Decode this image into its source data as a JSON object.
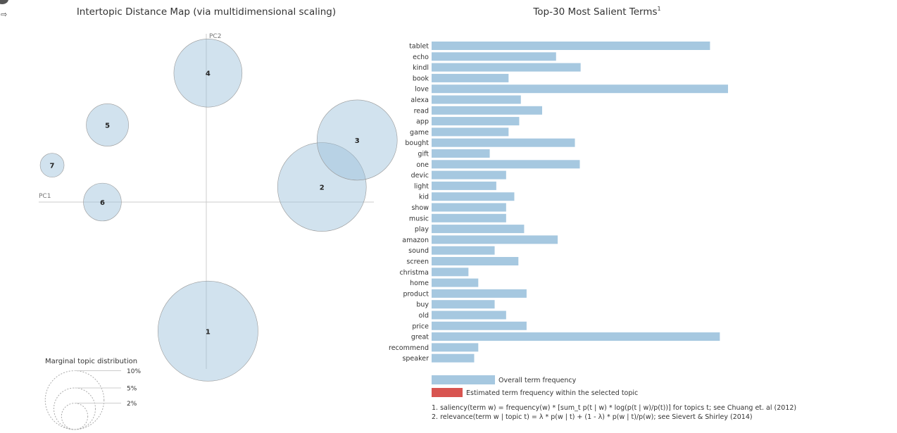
{
  "chart_data": [
    {
      "type": "scatter",
      "title": "Intertopic Distance Map (via multidimensional scaling)",
      "xlabel": "PC1",
      "ylabel": "PC2",
      "xlim": [
        -1,
        1
      ],
      "ylim": [
        -1,
        1
      ],
      "grid": false,
      "points": [
        {
          "label": "1",
          "x": 0.01,
          "y": -0.77,
          "size": 14
        },
        {
          "label": "2",
          "x": 0.69,
          "y": 0.09,
          "size": 11
        },
        {
          "label": "3",
          "x": 0.9,
          "y": 0.37,
          "size": 9
        },
        {
          "label": "4",
          "x": 0.01,
          "y": 0.77,
          "size": 6.5
        },
        {
          "label": "5",
          "x": -0.59,
          "y": 0.46,
          "size": 2.5
        },
        {
          "label": "6",
          "x": -0.62,
          "y": 0.0,
          "size": 2.0
        },
        {
          "label": "7",
          "x": -0.92,
          "y": 0.22,
          "size": 0.8
        }
      ],
      "marginal": {
        "title": "Marginal topic distribution",
        "levels": [
          {
            "label": "2%",
            "value": 2
          },
          {
            "label": "5%",
            "value": 5
          },
          {
            "label": "10%",
            "value": 10
          }
        ]
      }
    },
    {
      "type": "bar",
      "orientation": "horizontal",
      "title": "Top-30 Most Salient Terms",
      "title_sup": "1",
      "xlim": [
        0,
        2000
      ],
      "categories": [
        "tablet",
        "echo",
        "kindl",
        "book",
        "love",
        "alexa",
        "read",
        "app",
        "game",
        "bought",
        "gift",
        "one",
        "devic",
        "light",
        "kid",
        "show",
        "music",
        "play",
        "amazon",
        "sound",
        "screen",
        "christma",
        "home",
        "product",
        "buy",
        "old",
        "price",
        "great",
        "recommend",
        "speaker"
      ],
      "series": [
        {
          "name": "Overall term frequency",
          "color": "#a6c8e0",
          "values": [
            1700,
            760,
            910,
            470,
            1810,
            545,
            675,
            535,
            470,
            875,
            355,
            905,
            455,
            395,
            505,
            455,
            455,
            565,
            770,
            385,
            530,
            225,
            285,
            580,
            385,
            455,
            580,
            1760,
            285,
            260
          ]
        }
      ],
      "legend": [
        {
          "label": "Overall term frequency",
          "color": "#a6c8e0"
        },
        {
          "label": "Estimated term frequency within the selected topic",
          "color": "#d85450"
        }
      ],
      "footnotes": [
        "1. saliency(term w) = frequency(w) * [sum_t p(t | w) * log(p(t | w)/p(t))] for topics t; see Chuang et. al (2012)",
        "2. relevance(term w | topic t) = λ * p(w | t) + (1 - λ) * p(w | t)/p(w); see Sievert & Shirley (2014)"
      ]
    }
  ],
  "ui": {
    "exit_glyph": "⇨"
  }
}
